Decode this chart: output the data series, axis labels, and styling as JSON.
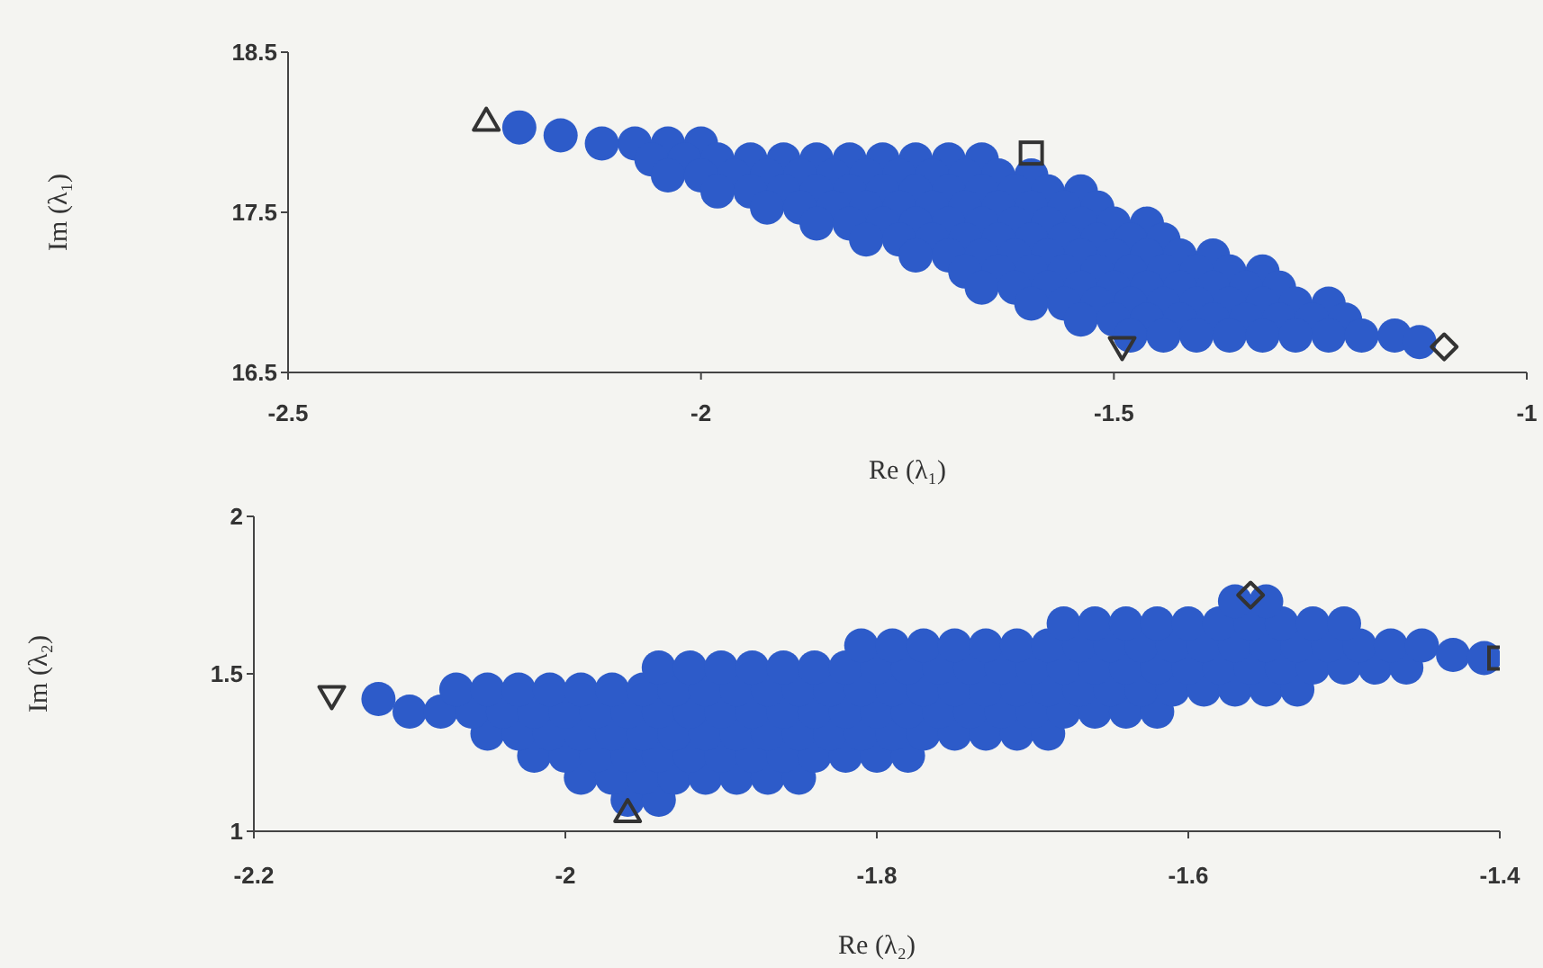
{
  "chart_data": [
    {
      "type": "scatter",
      "xlabel": "Re (λ₁)",
      "ylabel": "Im (λ₁)",
      "xlim": [
        -2.5,
        -1
      ],
      "ylim": [
        16.5,
        18.5
      ],
      "xticks": [
        -2.5,
        -2,
        -1.5,
        -1
      ],
      "yticks": [
        16.5,
        17.5,
        18.5
      ],
      "series": [
        {
          "color": "#2d5bc9",
          "marker": "circle",
          "x": [
            -2.12,
            -2.08,
            -2.04,
            -2,
            -2.06,
            -2.02,
            -1.98,
            -1.94,
            -1.9,
            -1.86,
            -1.82,
            -1.78,
            -1.74,
            -1.7,
            -1.66,
            -2.04,
            -2,
            -1.96,
            -1.92,
            -1.88,
            -1.84,
            -1.8,
            -1.76,
            -1.72,
            -1.68,
            -1.64,
            -1.6,
            -1.98,
            -1.94,
            -1.9,
            -1.86,
            -1.82,
            -1.78,
            -1.74,
            -1.7,
            -1.66,
            -1.62,
            -1.58,
            -1.54,
            -1.92,
            -1.88,
            -1.84,
            -1.8,
            -1.76,
            -1.72,
            -1.68,
            -1.64,
            -1.6,
            -1.56,
            -1.52,
            -1.86,
            -1.82,
            -1.78,
            -1.74,
            -1.7,
            -1.66,
            -1.62,
            -1.58,
            -1.54,
            -1.5,
            -1.46,
            -1.8,
            -1.76,
            -1.72,
            -1.68,
            -1.64,
            -1.6,
            -1.56,
            -1.52,
            -1.48,
            -1.44,
            -1.74,
            -1.7,
            -1.66,
            -1.62,
            -1.58,
            -1.54,
            -1.5,
            -1.46,
            -1.42,
            -1.38,
            -1.68,
            -1.64,
            -1.6,
            -1.56,
            -1.52,
            -1.48,
            -1.44,
            -1.4,
            -1.36,
            -1.32,
            -1.66,
            -1.62,
            -1.58,
            -1.54,
            -1.5,
            -1.46,
            -1.42,
            -1.38,
            -1.34,
            -1.3,
            -1.6,
            -1.56,
            -1.52,
            -1.48,
            -1.44,
            -1.4,
            -1.36,
            -1.32,
            -1.28,
            -1.24,
            -1.54,
            -1.5,
            -1.46,
            -1.42,
            -1.38,
            -1.34,
            -1.3,
            -1.26,
            -1.22,
            -1.48,
            -1.44,
            -1.4,
            -1.36,
            -1.32,
            -1.28,
            -1.24,
            -1.2,
            -1.16,
            -2.22,
            -2.17,
            -1.13
          ],
          "values": [
            17.93,
            17.93,
            17.93,
            17.93,
            17.83,
            17.83,
            17.83,
            17.83,
            17.83,
            17.83,
            17.83,
            17.83,
            17.83,
            17.83,
            17.83,
            17.73,
            17.73,
            17.73,
            17.73,
            17.73,
            17.73,
            17.73,
            17.73,
            17.73,
            17.73,
            17.73,
            17.73,
            17.63,
            17.63,
            17.63,
            17.63,
            17.63,
            17.63,
            17.63,
            17.63,
            17.63,
            17.63,
            17.63,
            17.63,
            17.53,
            17.53,
            17.53,
            17.53,
            17.53,
            17.53,
            17.53,
            17.53,
            17.53,
            17.53,
            17.53,
            17.43,
            17.43,
            17.43,
            17.43,
            17.43,
            17.43,
            17.43,
            17.43,
            17.43,
            17.43,
            17.43,
            17.33,
            17.33,
            17.33,
            17.33,
            17.33,
            17.33,
            17.33,
            17.33,
            17.33,
            17.33,
            17.23,
            17.23,
            17.23,
            17.23,
            17.23,
            17.23,
            17.23,
            17.23,
            17.23,
            17.23,
            17.13,
            17.13,
            17.13,
            17.13,
            17.13,
            17.13,
            17.13,
            17.13,
            17.13,
            17.13,
            17.03,
            17.03,
            17.03,
            17.03,
            17.03,
            17.03,
            17.03,
            17.03,
            17.03,
            17.03,
            16.93,
            16.93,
            16.93,
            16.93,
            16.93,
            16.93,
            16.93,
            16.93,
            16.93,
            16.93,
            16.83,
            16.83,
            16.83,
            16.83,
            16.83,
            16.83,
            16.83,
            16.83,
            16.83,
            16.73,
            16.73,
            16.73,
            16.73,
            16.73,
            16.73,
            16.73,
            16.73,
            16.73,
            18.03,
            17.98,
            16.69
          ]
        },
        {
          "color": "#333333",
          "marker": "triangle",
          "x": [
            -2.26
          ],
          "values": [
            18.07
          ]
        },
        {
          "color": "#333333",
          "marker": "square",
          "x": [
            -1.6
          ],
          "values": [
            17.87
          ]
        },
        {
          "color": "#333333",
          "marker": "triangle-down",
          "x": [
            -1.49
          ],
          "values": [
            16.66
          ]
        },
        {
          "color": "#333333",
          "marker": "diamond",
          "x": [
            -1.1
          ],
          "values": [
            16.66
          ]
        }
      ]
    },
    {
      "type": "scatter",
      "xlabel": "Re (λ₂)",
      "ylabel": "Im (λ₂)",
      "xlim": [
        -2.2,
        -1.4
      ],
      "ylim": [
        1,
        2
      ],
      "xticks": [
        -2.2,
        -2,
        -1.8,
        -1.6,
        -1.4
      ],
      "yticks": [
        1,
        1.5,
        2
      ],
      "series": [
        {
          "color": "#2d5bc9",
          "marker": "circle",
          "x": [
            -1.96,
            -1.94,
            -1.99,
            -1.97,
            -1.95,
            -1.93,
            -1.91,
            -1.89,
            -1.87,
            -1.85,
            -2.02,
            -2,
            -1.98,
            -1.96,
            -1.94,
            -1.92,
            -1.9,
            -1.88,
            -1.86,
            -1.84,
            -1.82,
            -1.8,
            -1.78,
            -2.05,
            -2.03,
            -2.01,
            -1.99,
            -1.97,
            -1.95,
            -1.93,
            -1.91,
            -1.89,
            -1.87,
            -1.85,
            -1.83,
            -1.81,
            -1.79,
            -1.77,
            -1.75,
            -1.73,
            -1.71,
            -1.69,
            -2.1,
            -2.08,
            -2.06,
            -2.04,
            -2.02,
            -2,
            -1.98,
            -1.96,
            -1.94,
            -1.92,
            -1.9,
            -1.88,
            -1.86,
            -1.84,
            -1.82,
            -1.8,
            -1.78,
            -1.76,
            -1.74,
            -1.72,
            -1.7,
            -1.68,
            -1.66,
            -1.64,
            -1.62,
            -2.07,
            -2.05,
            -2.03,
            -2.01,
            -1.99,
            -1.97,
            -1.95,
            -1.93,
            -1.91,
            -1.89,
            -1.87,
            -1.85,
            -1.83,
            -1.81,
            -1.79,
            -1.77,
            -1.75,
            -1.73,
            -1.71,
            -1.69,
            -1.67,
            -1.65,
            -1.63,
            -1.61,
            -1.59,
            -1.57,
            -1.55,
            -1.53,
            -1.94,
            -1.92,
            -1.9,
            -1.88,
            -1.86,
            -1.84,
            -1.82,
            -1.8,
            -1.78,
            -1.76,
            -1.74,
            -1.72,
            -1.7,
            -1.68,
            -1.66,
            -1.64,
            -1.62,
            -1.6,
            -1.58,
            -1.56,
            -1.54,
            -1.52,
            -1.5,
            -1.48,
            -1.46,
            -1.81,
            -1.79,
            -1.77,
            -1.75,
            -1.73,
            -1.71,
            -1.69,
            -1.67,
            -1.65,
            -1.63,
            -1.61,
            -1.59,
            -1.57,
            -1.55,
            -1.53,
            -1.51,
            -1.49,
            -1.47,
            -1.45,
            -1.68,
            -1.66,
            -1.64,
            -1.62,
            -1.6,
            -1.58,
            -1.56,
            -1.54,
            -1.52,
            -1.5,
            -1.57,
            -1.55,
            -2.12,
            -1.43,
            -1.41
          ],
          "values": [
            1.1,
            1.1,
            1.17,
            1.17,
            1.17,
            1.17,
            1.17,
            1.17,
            1.17,
            1.17,
            1.24,
            1.24,
            1.24,
            1.24,
            1.24,
            1.24,
            1.24,
            1.24,
            1.24,
            1.24,
            1.24,
            1.24,
            1.24,
            1.31,
            1.31,
            1.31,
            1.31,
            1.31,
            1.31,
            1.31,
            1.31,
            1.31,
            1.31,
            1.31,
            1.31,
            1.31,
            1.31,
            1.31,
            1.31,
            1.31,
            1.31,
            1.31,
            1.38,
            1.38,
            1.38,
            1.38,
            1.38,
            1.38,
            1.38,
            1.38,
            1.38,
            1.38,
            1.38,
            1.38,
            1.38,
            1.38,
            1.38,
            1.38,
            1.38,
            1.38,
            1.38,
            1.38,
            1.38,
            1.38,
            1.38,
            1.38,
            1.38,
            1.45,
            1.45,
            1.45,
            1.45,
            1.45,
            1.45,
            1.45,
            1.45,
            1.45,
            1.45,
            1.45,
            1.45,
            1.45,
            1.45,
            1.45,
            1.45,
            1.45,
            1.45,
            1.45,
            1.45,
            1.45,
            1.45,
            1.45,
            1.45,
            1.45,
            1.45,
            1.45,
            1.45,
            1.52,
            1.52,
            1.52,
            1.52,
            1.52,
            1.52,
            1.52,
            1.52,
            1.52,
            1.52,
            1.52,
            1.52,
            1.52,
            1.52,
            1.52,
            1.52,
            1.52,
            1.52,
            1.52,
            1.52,
            1.52,
            1.52,
            1.52,
            1.52,
            1.52,
            1.59,
            1.59,
            1.59,
            1.59,
            1.59,
            1.59,
            1.59,
            1.59,
            1.59,
            1.59,
            1.59,
            1.59,
            1.59,
            1.59,
            1.59,
            1.59,
            1.59,
            1.59,
            1.59,
            1.66,
            1.66,
            1.66,
            1.66,
            1.66,
            1.66,
            1.66,
            1.66,
            1.66,
            1.66,
            1.73,
            1.73,
            1.42,
            1.56,
            1.55
          ]
        },
        {
          "color": "#333333",
          "marker": "triangle-down",
          "x": [
            -2.15
          ],
          "values": [
            1.43
          ]
        },
        {
          "color": "#333333",
          "marker": "triangle",
          "x": [
            -1.96
          ],
          "values": [
            1.06
          ]
        },
        {
          "color": "#333333",
          "marker": "diamond",
          "x": [
            -1.56
          ],
          "values": [
            1.75
          ]
        },
        {
          "color": "#333333",
          "marker": "square",
          "x": [
            -1.4
          ],
          "values": [
            1.55
          ]
        }
      ]
    }
  ]
}
